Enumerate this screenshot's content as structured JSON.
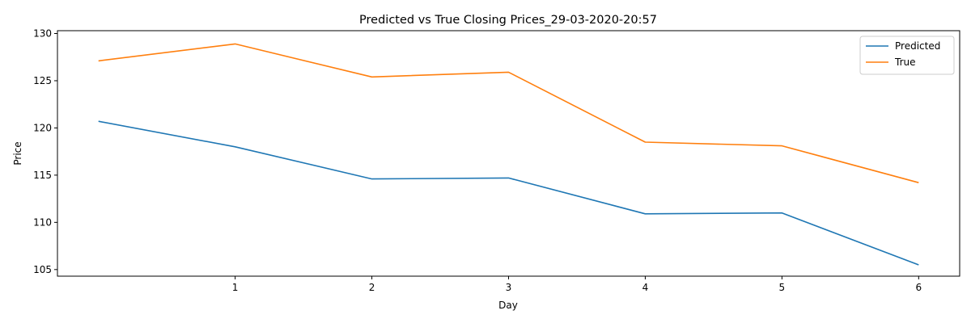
{
  "chart_data": {
    "type": "line",
    "title": "Predicted vs True Closing Prices_29-03-2020-20:57",
    "xlabel": "Day",
    "ylabel": "Price",
    "x": [
      0,
      1,
      2,
      3,
      4,
      5,
      6
    ],
    "x_ticks": [
      1,
      2,
      3,
      4,
      5,
      6
    ],
    "y_ticks": [
      105,
      110,
      115,
      120,
      125,
      130
    ],
    "xlim": [
      -0.3,
      6.3
    ],
    "ylim": [
      104.3,
      130.3
    ],
    "grid": false,
    "legend_position": "top-right",
    "series": [
      {
        "name": "Predicted",
        "color": "#1f77b4",
        "values": [
          120.7,
          118.0,
          114.6,
          114.7,
          110.9,
          111.0,
          105.5
        ]
      },
      {
        "name": "True",
        "color": "#ff7f0e",
        "values": [
          127.1,
          128.9,
          125.4,
          125.9,
          118.5,
          118.1,
          114.2
        ]
      }
    ]
  }
}
